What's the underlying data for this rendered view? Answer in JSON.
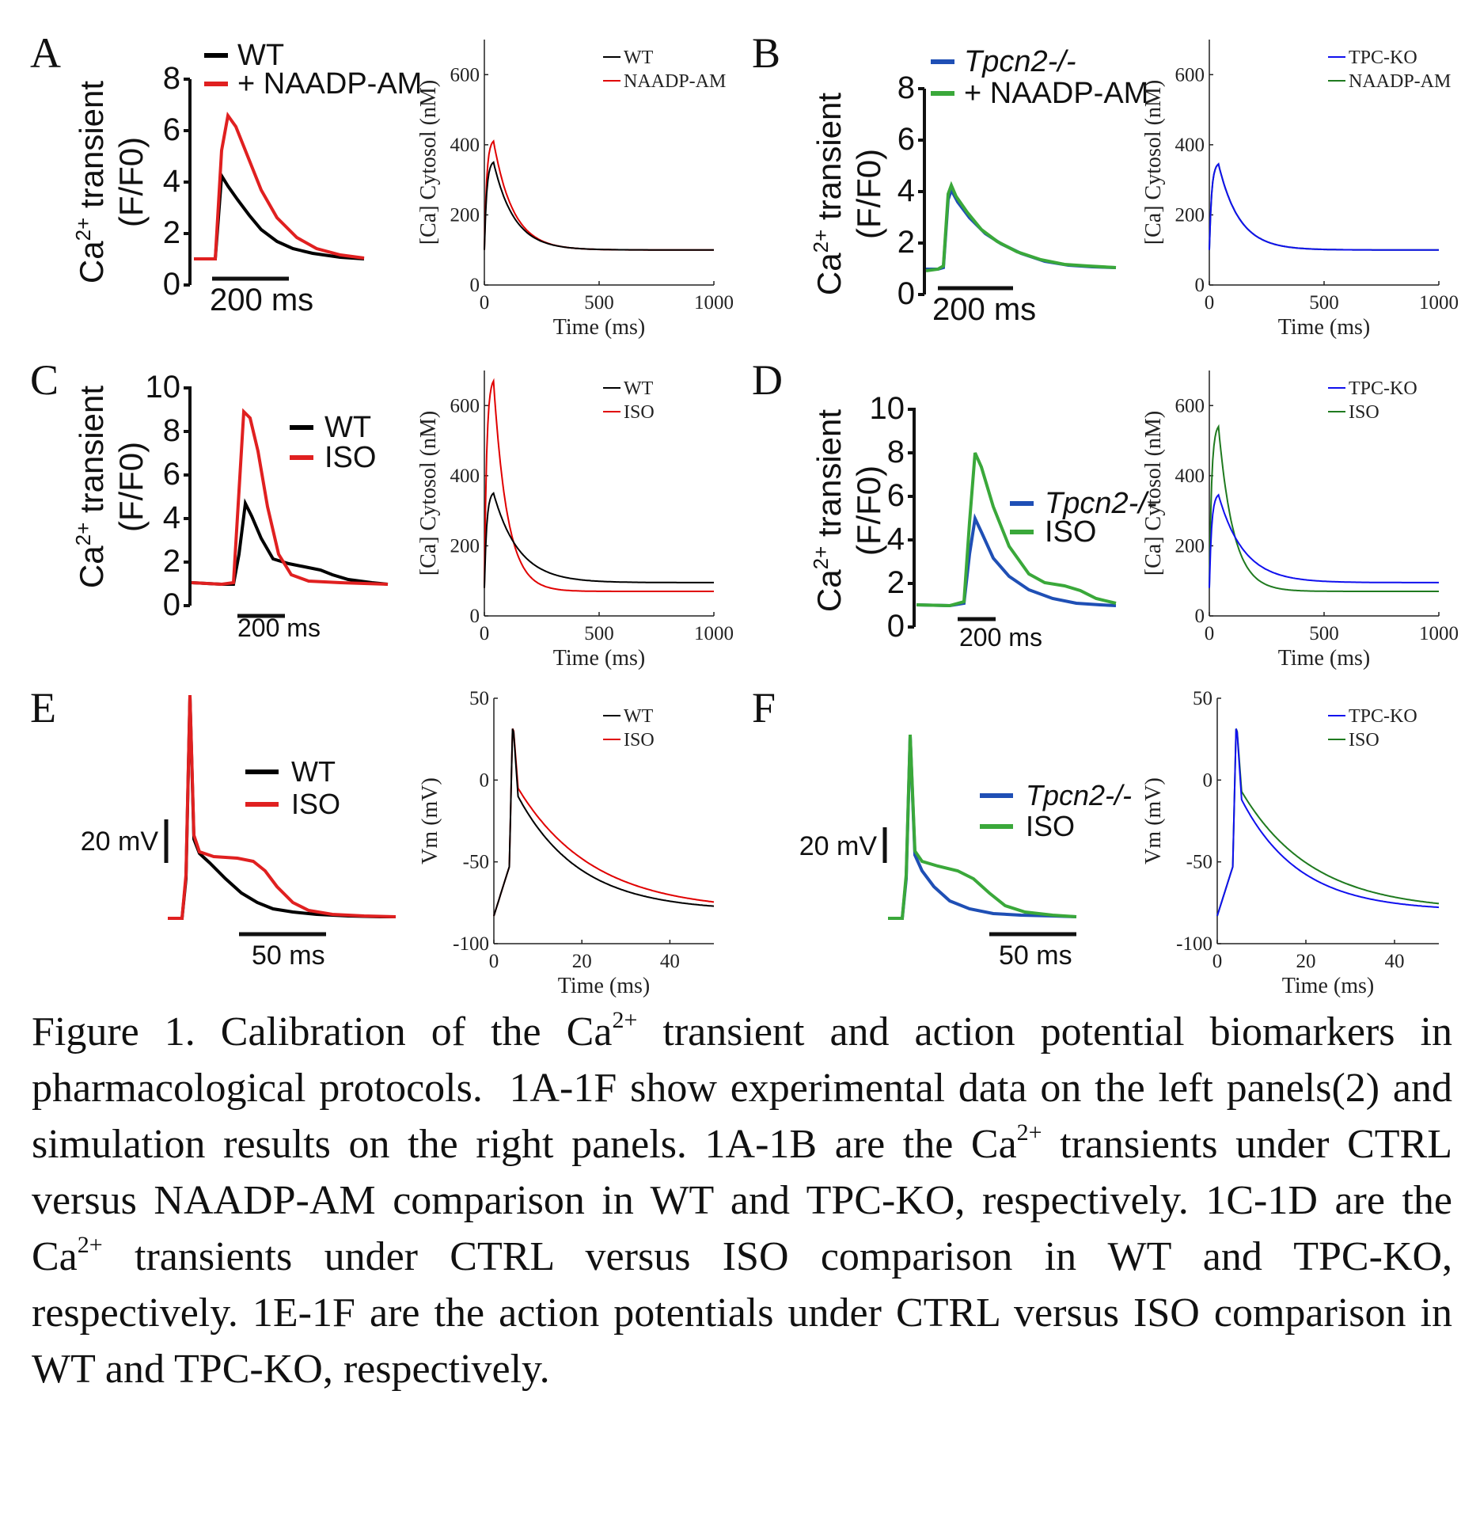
{
  "colors": {
    "wt": "#000000",
    "naadp": "#e02020",
    "iso": "#e02020",
    "ko": "#1f4fb5",
    "ko_iso": "#3aa83a",
    "sim_ko": "#1010ee",
    "sim_iso": "#1f7a1f",
    "sim_red": "#e00000"
  },
  "panels": [
    {
      "letter": "A",
      "exp": {
        "legend": [
          "WT",
          "+ NAADP-AM"
        ],
        "ylabel": "Ca2+ transient (F/F0)",
        "yticks": [
          "0",
          "2",
          "4",
          "6",
          "8"
        ],
        "scalebar": "200 ms"
      },
      "sim": {
        "legend": [
          "WT",
          "NAADP-AM"
        ]
      }
    },
    {
      "letter": "B",
      "exp": {
        "legend": [
          "Tpcn2-/-",
          "+ NAADP-AM"
        ],
        "ylabel": "Ca2+ transient (F/F0)",
        "yticks": [
          "0",
          "2",
          "4",
          "6",
          "8"
        ],
        "scalebar": "200 ms"
      },
      "sim": {
        "legend": [
          "TPC-KO",
          "NAADP-AM"
        ]
      }
    },
    {
      "letter": "C",
      "exp": {
        "legend": [
          "WT",
          "ISO"
        ],
        "ylabel": "Ca2+ transient (F/F0)",
        "yticks": [
          "0",
          "2",
          "4",
          "6",
          "8",
          "10"
        ],
        "scalebar": "200 ms"
      },
      "sim": {
        "legend": [
          "WT",
          "ISO"
        ]
      }
    },
    {
      "letter": "D",
      "exp": {
        "legend": [
          "Tpcn2-/-",
          "ISO"
        ],
        "ylabel": "Ca2+ transient (F/F0)",
        "yticks": [
          "0",
          "2",
          "4",
          "6",
          "8",
          "10"
        ],
        "scalebar": "200 ms"
      },
      "sim": {
        "legend": [
          "TPC-KO",
          "ISO"
        ]
      }
    },
    {
      "letter": "E",
      "exp": {
        "legend": [
          "WT",
          "ISO"
        ],
        "vbar": "20 mV",
        "scalebar": "50 ms"
      },
      "sim": {
        "legend": [
          "WT",
          "ISO"
        ]
      }
    },
    {
      "letter": "F",
      "exp": {
        "legend": [
          "Tpcn2-/-",
          "ISO"
        ],
        "vbar": "20 mV",
        "scalebar": "50 ms"
      },
      "sim": {
        "legend": [
          "TPC-KO",
          "ISO"
        ]
      }
    }
  ],
  "axes": {
    "ca": {
      "ylabel": "[Ca] Cytosol (nM)",
      "xlabel": "Time (ms)",
      "xticks": [
        "0",
        "500",
        "1000"
      ],
      "yticks": [
        "0",
        "200",
        "400",
        "600"
      ]
    },
    "ap": {
      "ylabel": "Vm (mV)",
      "xlabel": "Time (ms)",
      "xticks": [
        "0",
        "20",
        "40"
      ],
      "yticks": [
        "-100",
        "-50",
        "0",
        "50"
      ]
    }
  },
  "chart_data": [
    {
      "type": "line",
      "panel": "A-right",
      "xlabel": "Time (ms)",
      "ylabel": "[Ca] Cytosol (nM)",
      "xlim": [
        0,
        1000
      ],
      "ylim": [
        0,
        700
      ],
      "series": [
        {
          "name": "WT",
          "x": [
            0,
            40,
            100,
            200,
            400,
            1000
          ],
          "values": [
            100,
            350,
            280,
            180,
            115,
            100
          ]
        },
        {
          "name": "NAADP-AM",
          "x": [
            0,
            40,
            100,
            200,
            400,
            1000
          ],
          "values": [
            100,
            410,
            310,
            190,
            118,
            100
          ]
        }
      ]
    },
    {
      "type": "line",
      "panel": "B-right",
      "xlabel": "Time (ms)",
      "ylabel": "[Ca] Cytosol (nM)",
      "xlim": [
        0,
        1000
      ],
      "ylim": [
        0,
        700
      ],
      "series": [
        {
          "name": "TPC-KO",
          "x": [
            0,
            40,
            100,
            200,
            400,
            1000
          ],
          "values": [
            100,
            345,
            280,
            180,
            115,
            100
          ]
        },
        {
          "name": "NAADP-AM",
          "x": [
            0,
            40,
            100,
            200,
            400,
            1000
          ],
          "values": [
            100,
            345,
            280,
            180,
            115,
            100
          ]
        }
      ]
    },
    {
      "type": "line",
      "panel": "C-right",
      "xlabel": "Time (ms)",
      "ylabel": "[Ca] Cytosol (nM)",
      "xlim": [
        0,
        1000
      ],
      "ylim": [
        0,
        700
      ],
      "series": [
        {
          "name": "WT",
          "x": [
            0,
            40,
            100,
            200,
            400,
            1000
          ],
          "values": [
            80,
            350,
            290,
            200,
            120,
            95
          ]
        },
        {
          "name": "ISO",
          "x": [
            0,
            40,
            100,
            200,
            400,
            1000
          ],
          "values": [
            80,
            670,
            430,
            190,
            75,
            70
          ]
        }
      ]
    },
    {
      "type": "line",
      "panel": "D-right",
      "xlabel": "Time (ms)",
      "ylabel": "[Ca] Cytosol (nM)",
      "xlim": [
        0,
        1000
      ],
      "ylim": [
        0,
        700
      ],
      "series": [
        {
          "name": "TPC-KO",
          "x": [
            0,
            40,
            100,
            200,
            400,
            1000
          ],
          "values": [
            80,
            345,
            290,
            200,
            120,
            95
          ]
        },
        {
          "name": "ISO",
          "x": [
            0,
            40,
            100,
            200,
            400,
            1000
          ],
          "values": [
            80,
            540,
            380,
            180,
            75,
            70
          ]
        }
      ]
    },
    {
      "type": "line",
      "panel": "E-right",
      "xlabel": "Time (ms)",
      "ylabel": "Vm (mV)",
      "xlim": [
        0,
        50
      ],
      "ylim": [
        -100,
        50
      ],
      "series": [
        {
          "name": "WT",
          "x": [
            0,
            4,
            5,
            10,
            20,
            30,
            40,
            50
          ],
          "values": [
            -83,
            37,
            -10,
            -30,
            -52,
            -66,
            -74,
            -79
          ]
        },
        {
          "name": "ISO",
          "x": [
            0,
            4,
            5,
            10,
            20,
            30,
            40,
            50
          ],
          "values": [
            -83,
            37,
            -5,
            -20,
            -45,
            -61,
            -71,
            -77
          ]
        }
      ]
    },
    {
      "type": "line",
      "panel": "F-right",
      "xlabel": "Time (ms)",
      "ylabel": "Vm (mV)",
      "xlim": [
        0,
        50
      ],
      "ylim": [
        -100,
        50
      ],
      "series": [
        {
          "name": "TPC-KO",
          "x": [
            0,
            4,
            5,
            10,
            20,
            30,
            40,
            50
          ],
          "values": [
            -83,
            37,
            -12,
            -32,
            -53,
            -67,
            -75,
            -80
          ]
        },
        {
          "name": "ISO",
          "x": [
            0,
            4,
            5,
            10,
            20,
            30,
            40,
            50
          ],
          "values": [
            -83,
            37,
            -7,
            -22,
            -46,
            -62,
            -72,
            -78
          ]
        }
      ]
    }
  ]
}
